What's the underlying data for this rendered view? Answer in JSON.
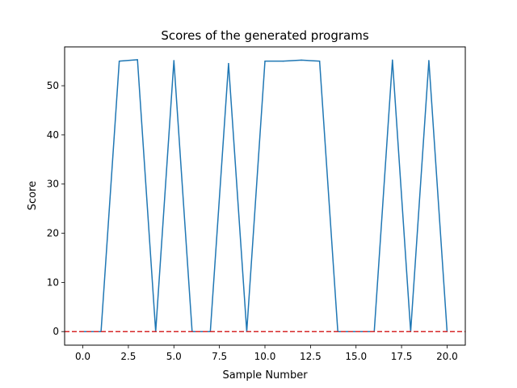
{
  "chart_data": {
    "type": "line",
    "title": "Scores of the generated programs",
    "xlabel": "Sample Number",
    "ylabel": "Score",
    "xlim": [
      -1,
      21
    ],
    "ylim": [
      -2.76,
      57.9
    ],
    "xticks": [
      0.0,
      2.5,
      5.0,
      7.5,
      10.0,
      12.5,
      15.0,
      17.5,
      20.0
    ],
    "xtick_labels": [
      "0.0",
      "2.5",
      "5.0",
      "7.5",
      "10.0",
      "12.5",
      "15.0",
      "17.5",
      "20.0"
    ],
    "yticks": [
      0,
      10,
      20,
      30,
      40,
      50
    ],
    "ytick_labels": [
      "0",
      "10",
      "20",
      "30",
      "40",
      "50"
    ],
    "grid": false,
    "series": [
      {
        "color": "#1f77b4",
        "x": [
          0,
          1,
          2,
          3,
          4,
          5,
          6,
          7,
          8,
          9,
          10,
          11,
          12,
          13,
          14,
          15,
          16,
          17,
          18,
          19,
          20
        ],
        "values": [
          0,
          0,
          55.0,
          55.3,
          0,
          55.1,
          0,
          0,
          54.5,
          0,
          55.0,
          55.0,
          55.2,
          55.0,
          0,
          0,
          0,
          55.2,
          0,
          55.1,
          0
        ]
      }
    ],
    "reference_line": {
      "y": 0,
      "color": "#d62728",
      "style": "dashed"
    }
  }
}
